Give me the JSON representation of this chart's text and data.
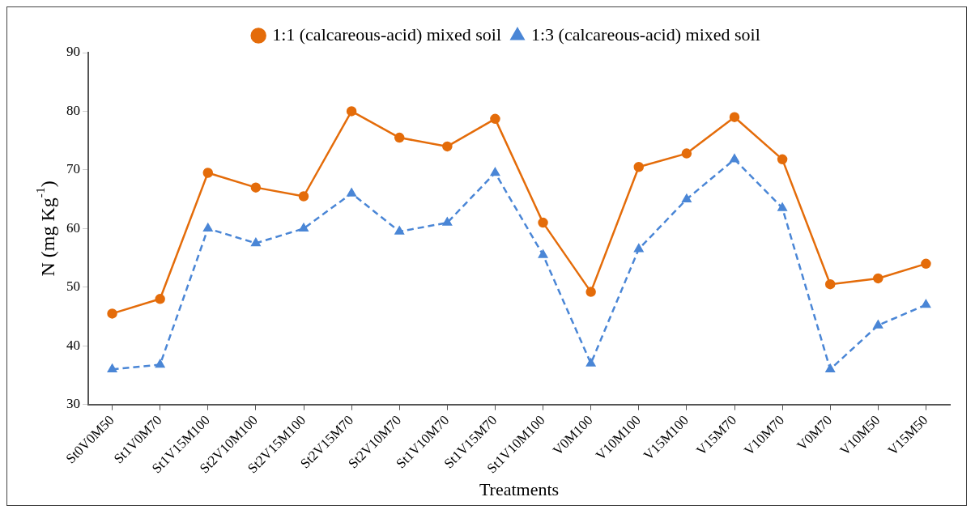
{
  "chart_data": {
    "type": "line",
    "xlabel": "Treatments",
    "ylabel": "N (mg Kg$^{-1}$)",
    "categories": [
      "St0V0M50",
      "St1V0M70",
      "St1V15M100",
      "St2V10M100",
      "St2V15M100",
      "St2V15M70",
      "St2V10M70",
      "St1V10M70",
      "St1V15M70",
      "St1V10M100",
      "V0M100",
      "V10M100",
      "V15M100",
      "V15M70",
      "V10M70",
      "V0M70",
      "V10M50",
      "V15M50"
    ],
    "series": [
      {
        "name": "1:1 (calcareous-acid) mixed soil",
        "color": "#e46c0a",
        "marker": "circle",
        "line_style": "solid",
        "values": [
          45.5,
          48,
          69.5,
          67,
          65.5,
          80,
          75.5,
          74,
          78.7,
          61,
          49.2,
          70.5,
          72.8,
          79,
          71.8,
          50.5,
          51.5,
          54
        ]
      },
      {
        "name": "1:3 (calcareous-acid) mixed soil",
        "color": "#4a86d6",
        "marker": "triangle",
        "line_style": "dashed",
        "values": [
          36,
          36.8,
          60,
          57.5,
          60,
          66,
          59.5,
          61,
          69.5,
          55.5,
          37,
          56.5,
          65,
          71.8,
          63.5,
          36,
          43.5,
          47
        ]
      }
    ],
    "ylim": [
      30,
      90
    ],
    "yticks": [
      30,
      40,
      50,
      60,
      70,
      80,
      90
    ],
    "grid": false,
    "legend": "top"
  }
}
